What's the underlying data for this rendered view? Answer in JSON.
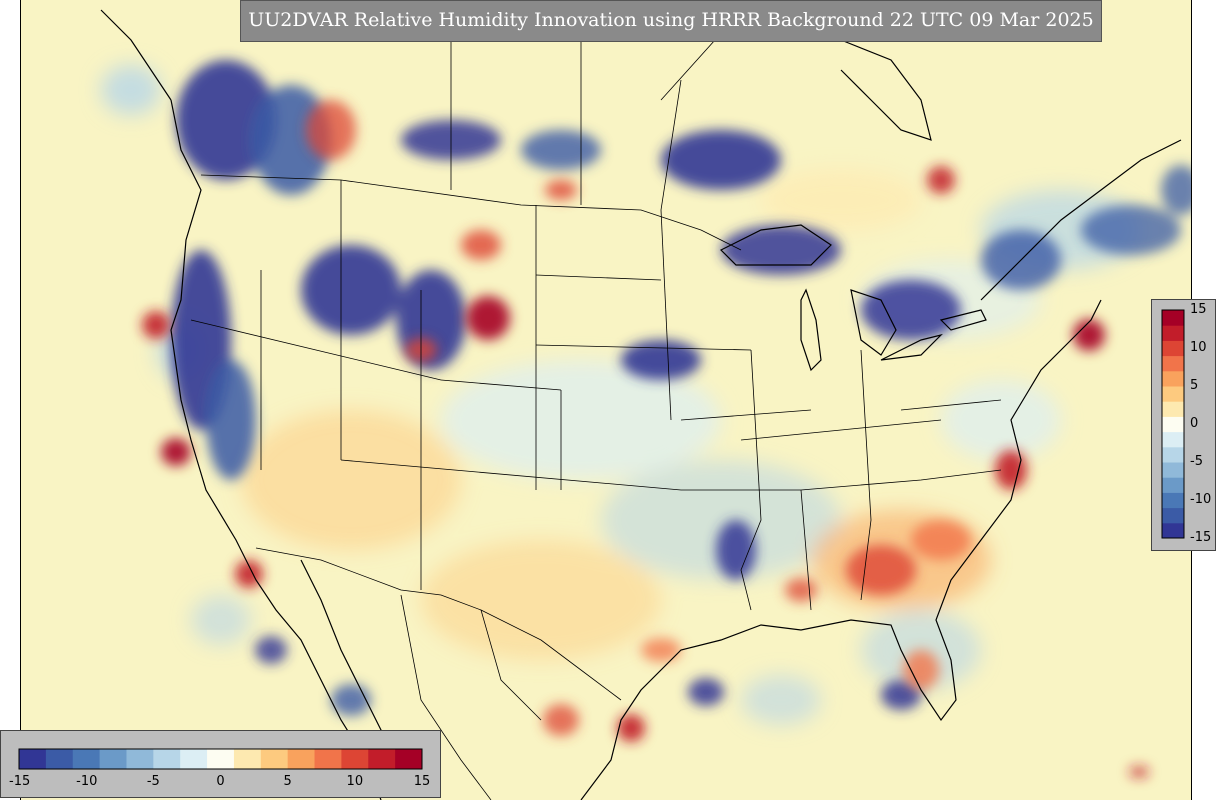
{
  "title": "UU2DVAR Relative Humidity Innovation using HRRR Background 22 UTC 09 Mar 2025",
  "colorbar": {
    "min": -15,
    "max": 15,
    "right_ticks": [
      "15",
      "10",
      "5",
      "0",
      "-5",
      "-10",
      "-15"
    ],
    "bottom_ticks": [
      "-15",
      "-10",
      "-5",
      "0",
      "5",
      "10",
      "15"
    ],
    "colors": [
      "#313695",
      "#3b5ba6",
      "#4a78b6",
      "#6b9ac8",
      "#90b9d9",
      "#b7d6e8",
      "#dceef4",
      "#fdfdf2",
      "#fde9b0",
      "#fdca7f",
      "#f9a25d",
      "#f1744a",
      "#dd4534",
      "#c21d2a",
      "#a50026"
    ]
  },
  "map": {
    "background_color": "#f9f4c4",
    "region": "Continental United States with southern Canada and northern Mexico"
  }
}
